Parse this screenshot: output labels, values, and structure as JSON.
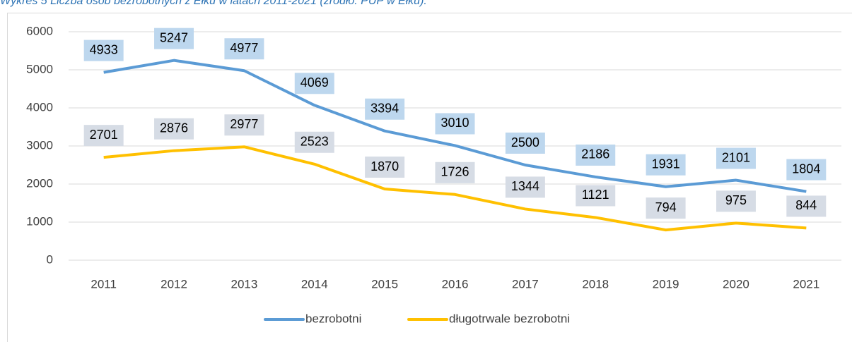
{
  "chart_data": {
    "type": "line",
    "title": "Wykres 5 Liczba osób bezrobotnych z Ełku w latach 2011-2021 (źródło: PUP w Ełku).",
    "categories": [
      "2011",
      "2012",
      "2013",
      "2014",
      "2015",
      "2016",
      "2017",
      "2018",
      "2019",
      "2020",
      "2021"
    ],
    "series": [
      {
        "name": "bezrobotni",
        "color": "#5b9bd5",
        "label_bg": "#bdd7ee",
        "values": [
          4933,
          5247,
          4977,
          4069,
          3394,
          3010,
          2500,
          2186,
          1931,
          2101,
          1804
        ]
      },
      {
        "name": "długotrwale bezrobotni",
        "color": "#ffc000",
        "label_bg": "#d6dce5",
        "values": [
          2701,
          2876,
          2977,
          2523,
          1870,
          1726,
          1344,
          1121,
          794,
          975,
          844
        ]
      }
    ],
    "ylim": [
      0,
      6000
    ],
    "yticks": [
      0,
      1000,
      2000,
      3000,
      4000,
      5000,
      6000
    ],
    "grid": true,
    "legend": "bottom"
  }
}
